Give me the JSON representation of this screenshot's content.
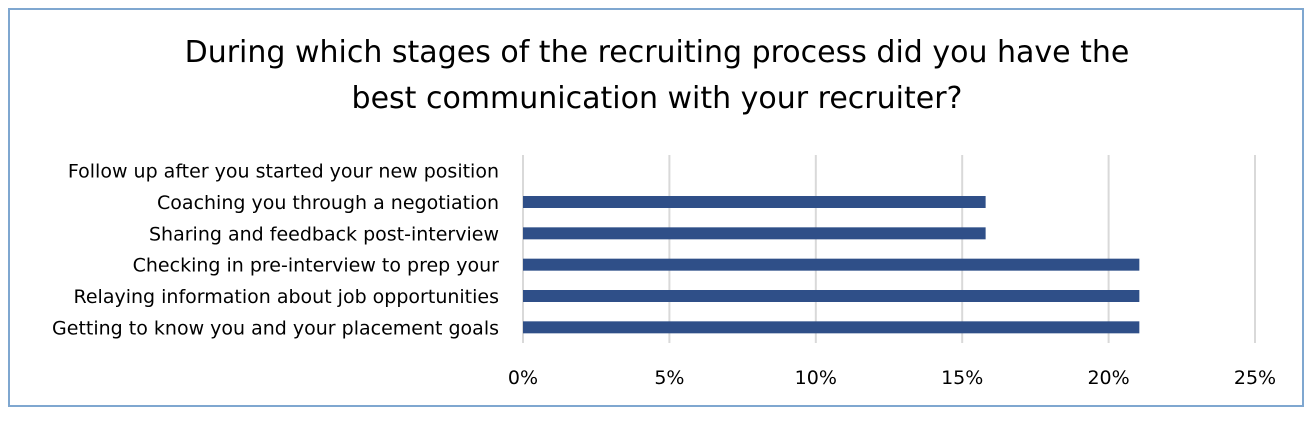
{
  "chart_data": {
    "type": "bar",
    "orientation": "horizontal",
    "title": "During which stages of the recruiting process did you have the\nbest communication with your recruiter?",
    "xlabel": "",
    "ylabel": "",
    "categories": [
      "Follow up after you started your new position",
      "Coaching you through a negotiation",
      "Sharing and feedback post-interview",
      "Checking in pre-interview to prep your",
      "Relaying information about job opportunities",
      "Getting to know you and your placement goals"
    ],
    "values": [
      0,
      15.8,
      15.8,
      21.05,
      21.05,
      21.05
    ],
    "value_unit": "%",
    "xlim": [
      0,
      25
    ],
    "xticks": [
      "0%",
      "5%",
      "10%",
      "15%",
      "20%",
      "25%"
    ],
    "xtick_values": [
      0,
      5,
      10,
      15,
      20,
      25
    ],
    "grid": true,
    "legend": "none",
    "bar_color": "#2f4f88",
    "grid_color": "#d9d9d9",
    "frame_color": "#7fa7d0"
  }
}
